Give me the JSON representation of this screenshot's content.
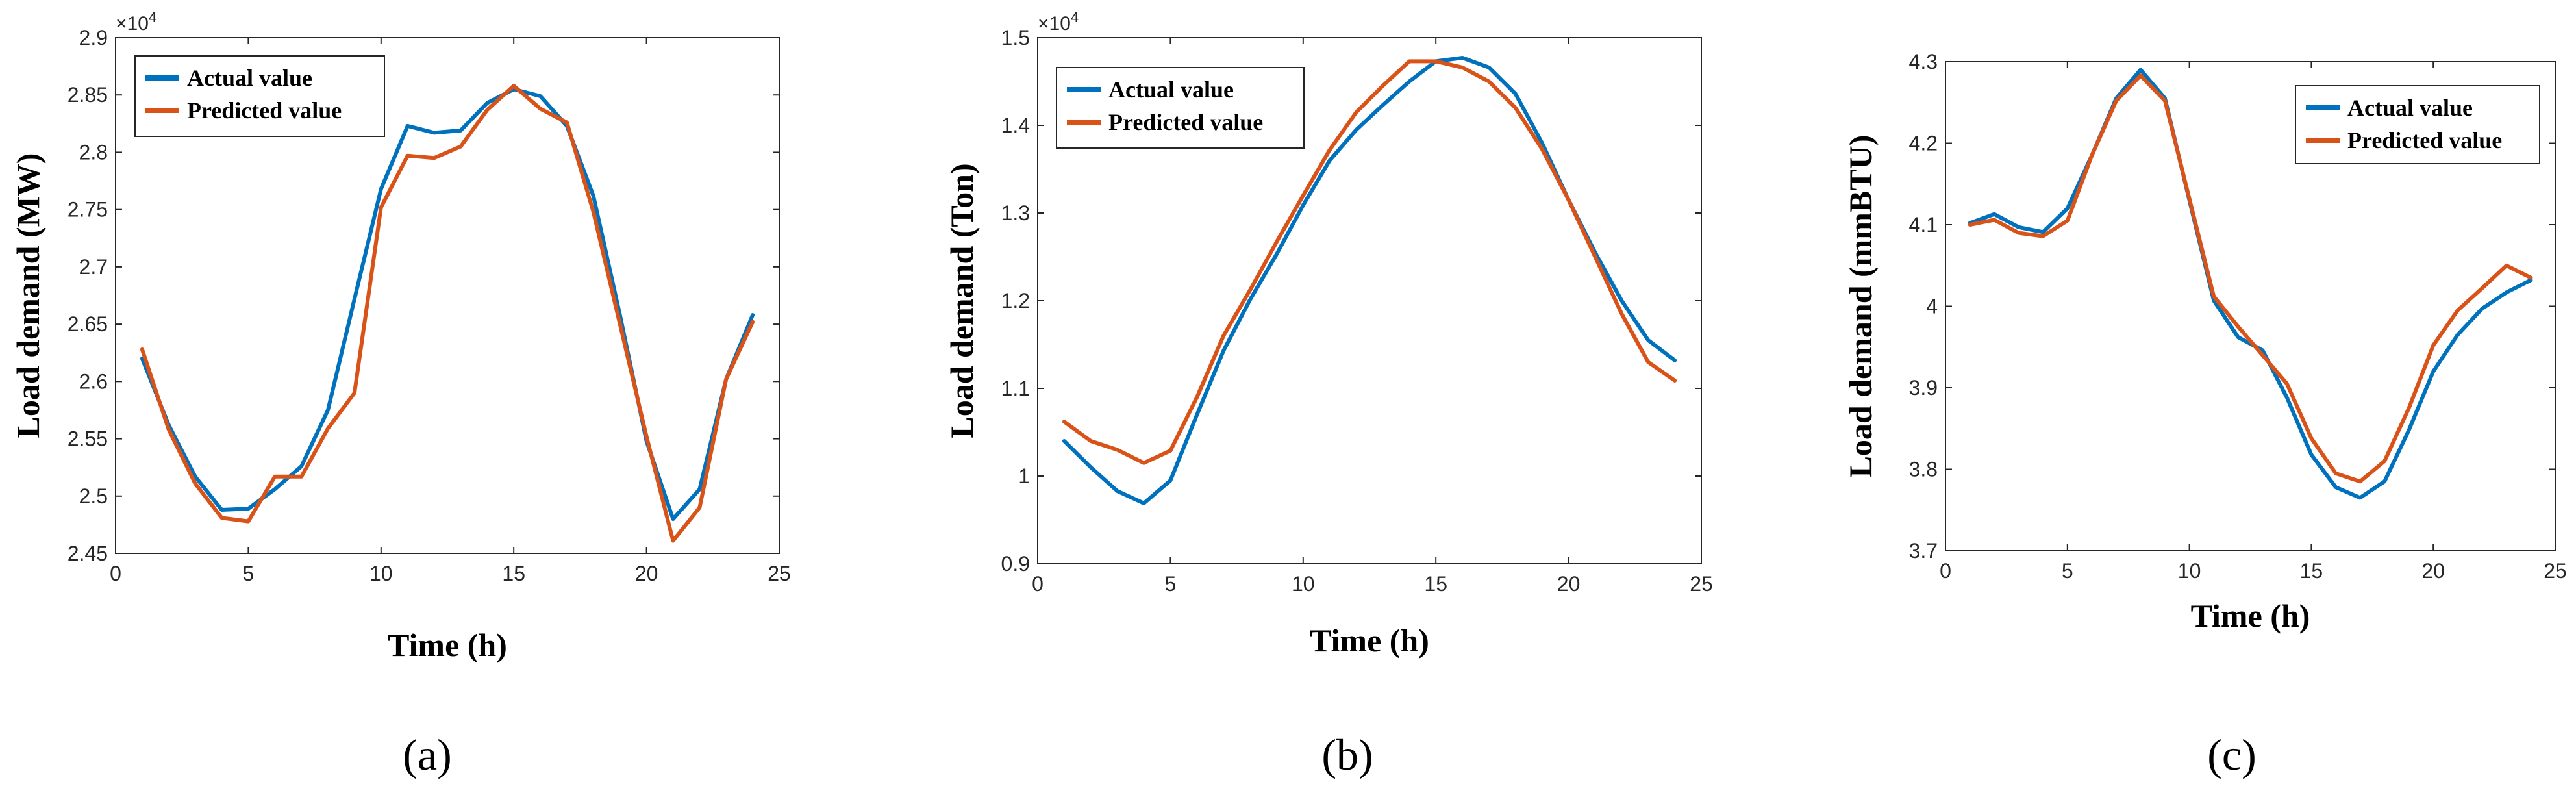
{
  "colors": {
    "actual": "#0072BD",
    "predicted": "#D95319",
    "axis": "#262626",
    "frame": "#262626"
  },
  "chart_data": [
    {
      "type": "line",
      "panel_label": "(a)",
      "xlabel": "Time (h)",
      "ylabel": "Load demand (MW)",
      "multiplier": {
        "base": "×10",
        "exp": "4"
      },
      "xlim": [
        0,
        25
      ],
      "ylim": [
        2.45,
        2.9
      ],
      "xticks": [
        0,
        5,
        10,
        15,
        20,
        25
      ],
      "xtick_labels": [
        "0",
        "5",
        "10",
        "15",
        "20",
        "25"
      ],
      "yticks": [
        2.45,
        2.5,
        2.55,
        2.6,
        2.65,
        2.7,
        2.75,
        2.8,
        2.85,
        2.9
      ],
      "ytick_labels": [
        "2.45",
        "2.5",
        "2.55",
        "2.6",
        "2.65",
        "2.7",
        "2.75",
        "2.8",
        "2.85",
        "2.9"
      ],
      "legend_position": "top-left",
      "x": [
        1,
        2,
        3,
        4,
        5,
        6,
        7,
        8,
        9,
        10,
        11,
        12,
        13,
        14,
        15,
        16,
        17,
        18,
        19,
        20,
        21,
        22,
        23,
        24
      ],
      "series": [
        {
          "name": "Actual value",
          "color_key": "actual",
          "values": [
            2.62,
            2.562,
            2.517,
            2.488,
            2.489,
            2.506,
            2.526,
            2.575,
            2.672,
            2.768,
            2.823,
            2.817,
            2.819,
            2.843,
            2.855,
            2.849,
            2.823,
            2.762,
            2.658,
            2.548,
            2.48,
            2.506,
            2.602,
            2.658
          ]
        },
        {
          "name": "Predicted value",
          "color_key": "predicted",
          "values": [
            2.628,
            2.558,
            2.511,
            2.481,
            2.478,
            2.517,
            2.517,
            2.559,
            2.59,
            2.752,
            2.797,
            2.795,
            2.805,
            2.837,
            2.858,
            2.838,
            2.826,
            2.748,
            2.65,
            2.552,
            2.461,
            2.49,
            2.602,
            2.652
          ]
        }
      ]
    },
    {
      "type": "line",
      "panel_label": "(b)",
      "xlabel": "Time (h)",
      "ylabel": "Load demand (Ton)",
      "multiplier": {
        "base": "×10",
        "exp": "4"
      },
      "xlim": [
        0,
        25
      ],
      "ylim": [
        0.9,
        1.5
      ],
      "xticks": [
        0,
        5,
        10,
        15,
        20,
        25
      ],
      "xtick_labels": [
        "0",
        "5",
        "10",
        "15",
        "20",
        "25"
      ],
      "yticks": [
        0.9,
        1.0,
        1.1,
        1.2,
        1.3,
        1.4,
        1.5
      ],
      "ytick_labels": [
        "0.9",
        "1",
        "1.1",
        "1.2",
        "1.3",
        "1.4",
        "1.5"
      ],
      "legend_position": "top-left",
      "x": [
        1,
        2,
        3,
        4,
        5,
        6,
        7,
        8,
        9,
        10,
        11,
        12,
        13,
        14,
        15,
        16,
        17,
        18,
        19,
        20,
        21,
        22,
        23,
        24
      ],
      "series": [
        {
          "name": "Actual value",
          "color_key": "actual",
          "values": [
            1.04,
            1.01,
            0.983,
            0.969,
            0.995,
            1.07,
            1.143,
            1.201,
            1.253,
            1.309,
            1.36,
            1.395,
            1.423,
            1.45,
            1.473,
            1.477,
            1.466,
            1.436,
            1.38,
            1.315,
            1.255,
            1.2,
            1.155,
            1.132
          ]
        },
        {
          "name": "Predicted value",
          "color_key": "predicted",
          "values": [
            1.062,
            1.04,
            1.03,
            1.015,
            1.029,
            1.09,
            1.16,
            1.212,
            1.267,
            1.32,
            1.372,
            1.415,
            1.445,
            1.473,
            1.473,
            1.466,
            1.45,
            1.42,
            1.373,
            1.315,
            1.25,
            1.185,
            1.13,
            1.109
          ]
        }
      ]
    },
    {
      "type": "line",
      "panel_label": "(c)",
      "xlabel": "Time (h)",
      "ylabel": "Load demand (mmBTU)",
      "multiplier": null,
      "xlim": [
        0,
        25
      ],
      "ylim": [
        3.7,
        4.3
      ],
      "xticks": [
        0,
        5,
        10,
        15,
        20,
        25
      ],
      "xtick_labels": [
        "0",
        "5",
        "10",
        "15",
        "20",
        "25"
      ],
      "yticks": [
        3.7,
        3.8,
        3.9,
        4.0,
        4.1,
        4.2,
        4.3
      ],
      "ytick_labels": [
        "3.7",
        "3.8",
        "3.9",
        "4",
        "4.1",
        "4.2",
        "4.3"
      ],
      "legend_position": "top-right",
      "x": [
        1,
        2,
        3,
        4,
        5,
        6,
        7,
        8,
        9,
        10,
        11,
        12,
        13,
        14,
        15,
        16,
        17,
        18,
        19,
        20,
        21,
        22,
        23,
        24
      ],
      "series": [
        {
          "name": "Actual value",
          "color_key": "actual",
          "values": [
            4.102,
            4.113,
            4.097,
            4.091,
            4.12,
            4.185,
            4.255,
            4.29,
            4.255,
            4.13,
            4.007,
            3.962,
            3.946,
            3.888,
            3.818,
            3.778,
            3.765,
            3.785,
            3.848,
            3.92,
            3.965,
            3.997,
            4.017,
            4.032
          ]
        },
        {
          "name": "Predicted value",
          "color_key": "predicted",
          "values": [
            4.1,
            4.106,
            4.09,
            4.086,
            4.105,
            4.185,
            4.252,
            4.283,
            4.252,
            4.132,
            4.012,
            3.975,
            3.94,
            3.905,
            3.838,
            3.795,
            3.785,
            3.81,
            3.875,
            3.952,
            3.995,
            4.022,
            4.05,
            4.035
          ]
        }
      ]
    }
  ]
}
